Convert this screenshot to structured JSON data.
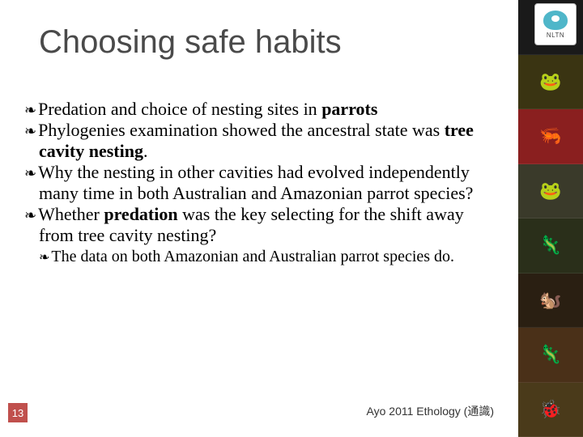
{
  "title": "Choosing safe habits",
  "bullets": [
    {
      "pre": "Predation and choice of nesting sites in ",
      "bold": "parrots",
      "post": ""
    },
    {
      "pre": "Phylogenies examination showed the ancestral state was ",
      "bold": "tree cavity nesting",
      "post": "."
    },
    {
      "pre": "Why the nesting in other cavities had evolved independently many time in both Australian and Amazonian parrot species?",
      "bold": "",
      "post": ""
    },
    {
      "pre": "Whether ",
      "bold": "predation",
      "post": " was the key selecting for the shift away from tree cavity nesting?"
    }
  ],
  "subbullet": "The data on both Amazonian and Australian parrot species do.",
  "pageNumber": "13",
  "footer": "Ayo 2011 Ethology (通識)",
  "logoLabel": "NLTN",
  "sidebarTiles": [
    {
      "bg": "#1a1a1a",
      "emoji": ""
    },
    {
      "bg": "#3a3412",
      "emoji": "🐸"
    },
    {
      "bg": "#8a1f1f",
      "emoji": "🦐"
    },
    {
      "bg": "#3a3a2a",
      "emoji": "🐸"
    },
    {
      "bg": "#2a2f1a",
      "emoji": "🦎"
    },
    {
      "bg": "#2a1f12",
      "emoji": "🐿️"
    },
    {
      "bg": "#4a3018",
      "emoji": "🦎"
    },
    {
      "bg": "#4a3a1a",
      "emoji": "🐞"
    }
  ],
  "colors": {
    "pageNumberBg": "#c0504d",
    "titleColor": "#4a4a4a"
  }
}
